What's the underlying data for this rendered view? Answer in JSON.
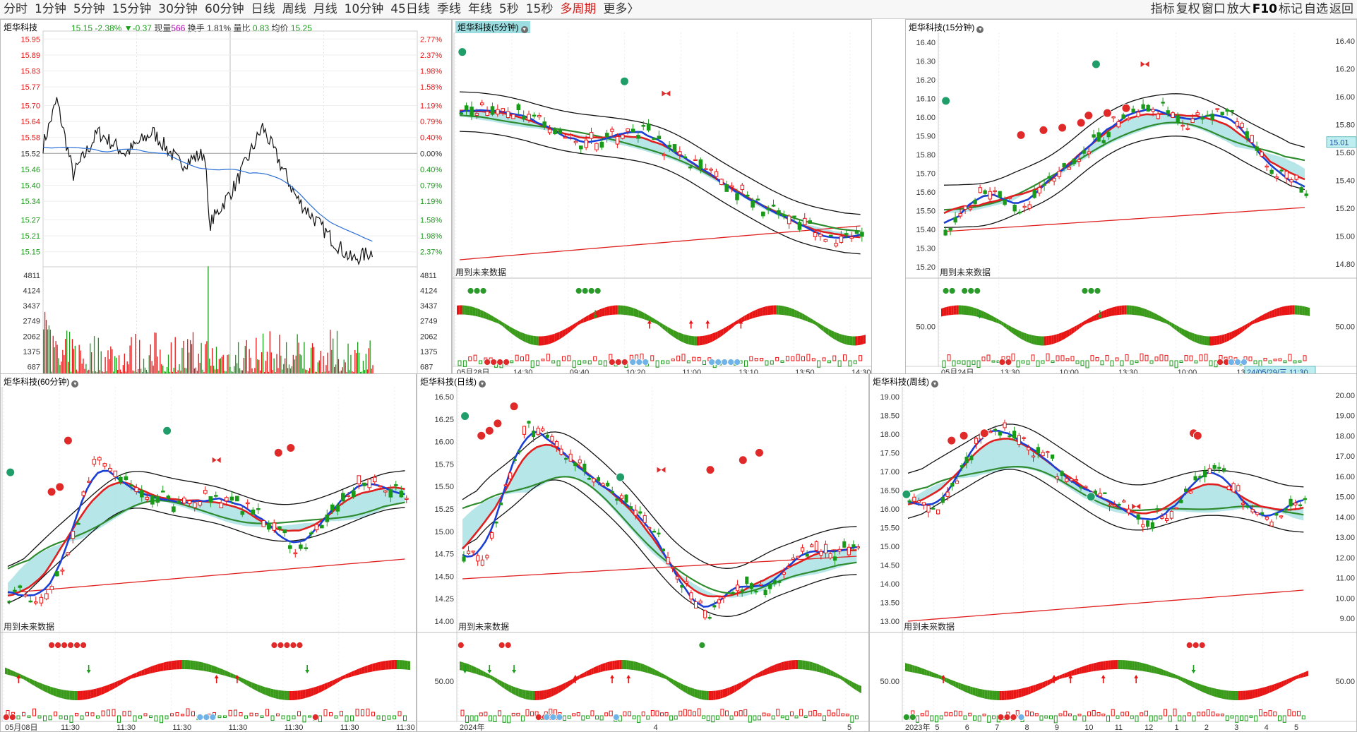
{
  "toolbar": {
    "periods": [
      {
        "label": "分时",
        "active": false
      },
      {
        "label": "1分钟",
        "active": false
      },
      {
        "label": "5分钟",
        "active": false
      },
      {
        "label": "15分钟",
        "active": false
      },
      {
        "label": "30分钟",
        "active": false
      },
      {
        "label": "60分钟",
        "active": false
      },
      {
        "label": "日线",
        "active": false
      },
      {
        "label": "周线",
        "active": false
      },
      {
        "label": "月线",
        "active": false
      },
      {
        "label": "10分钟",
        "active": false
      },
      {
        "label": "45日线",
        "active": false
      },
      {
        "label": "季线",
        "active": false
      },
      {
        "label": "年线",
        "active": false
      },
      {
        "label": "5秒",
        "active": false
      },
      {
        "label": "15秒",
        "active": false
      },
      {
        "label": "多周期",
        "active": true
      },
      {
        "label": "更多〉",
        "active": false
      }
    ],
    "right_items": [
      "指标",
      "复权",
      "窗口",
      "放大",
      "F10",
      "标记",
      "自选",
      "返回"
    ]
  },
  "colors": {
    "up": "#e81515",
    "down": "#199a19",
    "ma": "#1a3fd6",
    "cloud": "#9fdde2",
    "green_cloud": "#8fe08f"
  },
  "future_label": "用到未来数据",
  "intraday": {
    "title": "炬华科技",
    "price": "15.15",
    "change": "-2.38%",
    "change_abs": "▼-0.37",
    "volume_label": "现量",
    "volume": "566",
    "turnover_label": "换手",
    "turnover": "1.81%",
    "ratio_label": "量比",
    "ratio": "0.83",
    "avg_label": "均价",
    "avg": "15.25",
    "price_ticks": [
      "15.95",
      "15.89",
      "15.83",
      "15.77",
      "15.70",
      "15.64",
      "15.58",
      "15.52",
      "15.46",
      "15.40",
      "15.34",
      "15.27",
      "15.21",
      "15.15"
    ],
    "pct_ticks": [
      "2.77%",
      "2.37%",
      "1.98%",
      "1.58%",
      "1.19%",
      "0.79%",
      "0.40%",
      "0.00%",
      "0.40%",
      "0.79%",
      "1.19%",
      "1.58%",
      "1.98%",
      "2.37%"
    ],
    "vol_ticks": [
      "4811",
      "4124",
      "3437",
      "2749",
      "2062",
      "1375",
      "687"
    ],
    "prev_close": 15.52,
    "price_range": [
      15.12,
      15.98
    ]
  },
  "panels": [
    {
      "id": "5min",
      "title": "炬华科技(5分钟)",
      "highlight": true,
      "y_ticks": [],
      "x_labels": [
        "05月28日",
        "14:30",
        "09:40",
        "10:20",
        "11:00",
        "13:10",
        "13:50",
        "14:30"
      ],
      "osc_label": ""
    },
    {
      "id": "15min",
      "title": "炬华科技(15分钟)",
      "highlight": false,
      "y_ticks": [
        "16.40",
        "16.30",
        "16.20",
        "16.10",
        "16.00",
        "15.90",
        "15.80",
        "15.70",
        "15.60",
        "15.50",
        "15.40",
        "15.30",
        "15.20"
      ],
      "right_ticks": [
        "16.40",
        "16.20",
        "16.00",
        "15.80",
        "15.60",
        "15.40",
        "15.20",
        "15.00",
        "14.80"
      ],
      "right_osc": "50.00",
      "price_tag": "15.01",
      "date_tag": "24/05/29/三 11:30",
      "x_labels": [
        "05月24日",
        "13:30",
        "10:00",
        "13:30",
        "10:00",
        "13:30",
        "10:00"
      ],
      "osc_label": "50.00"
    },
    {
      "id": "60min",
      "title": "炬华科技(60分钟)",
      "highlight": false,
      "y_ticks": [],
      "x_labels": [
        "05月08日",
        "11:30",
        "11:30",
        "11:30",
        "11:30",
        "11:30",
        "11:30",
        "11:30"
      ],
      "osc_label": ""
    },
    {
      "id": "day",
      "title": "炬华科技(日线)",
      "highlight": false,
      "y_ticks": [
        "16.50",
        "16.25",
        "16.00",
        "15.75",
        "15.50",
        "15.25",
        "15.00",
        "14.75",
        "14.50",
        "14.25",
        "14.00"
      ],
      "x_labels": [
        "2024年",
        "4",
        "5"
      ],
      "osc_label": "50.00"
    },
    {
      "id": "week",
      "title": "炬华科技(周线)",
      "highlight": false,
      "y_ticks": [
        "19.00",
        "18.50",
        "18.00",
        "17.50",
        "17.00",
        "16.50",
        "16.00",
        "15.50",
        "15.00",
        "14.50",
        "14.00",
        "13.50",
        "13.00"
      ],
      "right_ticks": [
        "20.00",
        "19.00",
        "18.00",
        "17.00",
        "16.00",
        "15.00",
        "14.00",
        "13.00",
        "12.00",
        "11.00",
        "10.00",
        "9.00"
      ],
      "right_osc": "50.00",
      "x_labels": [
        "2023年",
        "5",
        "6",
        "7",
        "8",
        "9",
        "10",
        "11",
        "12",
        "1",
        "2",
        "3",
        "4",
        "5"
      ],
      "osc_label": "50.00"
    }
  ]
}
